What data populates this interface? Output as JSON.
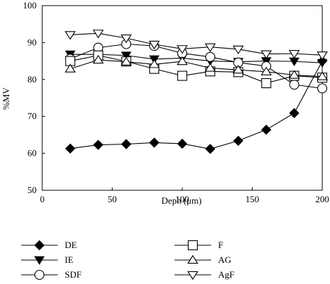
{
  "chart_data": {
    "type": "line",
    "xlabel": "Deph (μm)",
    "ylabel": "%MV",
    "xlim": [
      0,
      200
    ],
    "ylim": [
      50,
      100
    ],
    "xticks": [
      "0",
      "50",
      "100",
      "150",
      "200"
    ],
    "yticks": [
      "50",
      "60",
      "70",
      "80",
      "90",
      "100"
    ],
    "x": [
      20,
      40,
      60,
      80,
      100,
      120,
      140,
      160,
      180,
      200
    ],
    "series": [
      {
        "name": "DE",
        "marker": "diamond-filled",
        "values": [
          61.3,
          62.3,
          62.5,
          62.9,
          62.6,
          61.2,
          63.4,
          66.4,
          70.9,
          85.0
        ]
      },
      {
        "name": "IE",
        "marker": "down-tri-filled",
        "values": [
          86.8,
          86.8,
          86.5,
          85.5,
          85.8,
          85.0,
          84.8,
          85.0,
          84.9,
          84.5
        ]
      },
      {
        "name": "SDF",
        "marker": "circle-open",
        "values": [
          85.6,
          88.6,
          89.6,
          89.1,
          87.1,
          86.1,
          84.6,
          83.6,
          78.6,
          77.6
        ]
      },
      {
        "name": "F",
        "marker": "square-open",
        "values": [
          85.0,
          86.5,
          84.9,
          82.9,
          81.0,
          82.2,
          82.0,
          79.0,
          81.0,
          80.5
        ]
      },
      {
        "name": "AG",
        "marker": "up-tri-open",
        "values": [
          82.9,
          85.3,
          84.8,
          84.1,
          84.9,
          83.1,
          82.6,
          82.1,
          81.2,
          80.8
        ]
      },
      {
        "name": "AgF",
        "marker": "down-tri-open",
        "values": [
          92.1,
          92.5,
          91.2,
          89.5,
          88.3,
          88.8,
          88.2,
          86.9,
          87.0,
          86.6
        ]
      }
    ]
  }
}
